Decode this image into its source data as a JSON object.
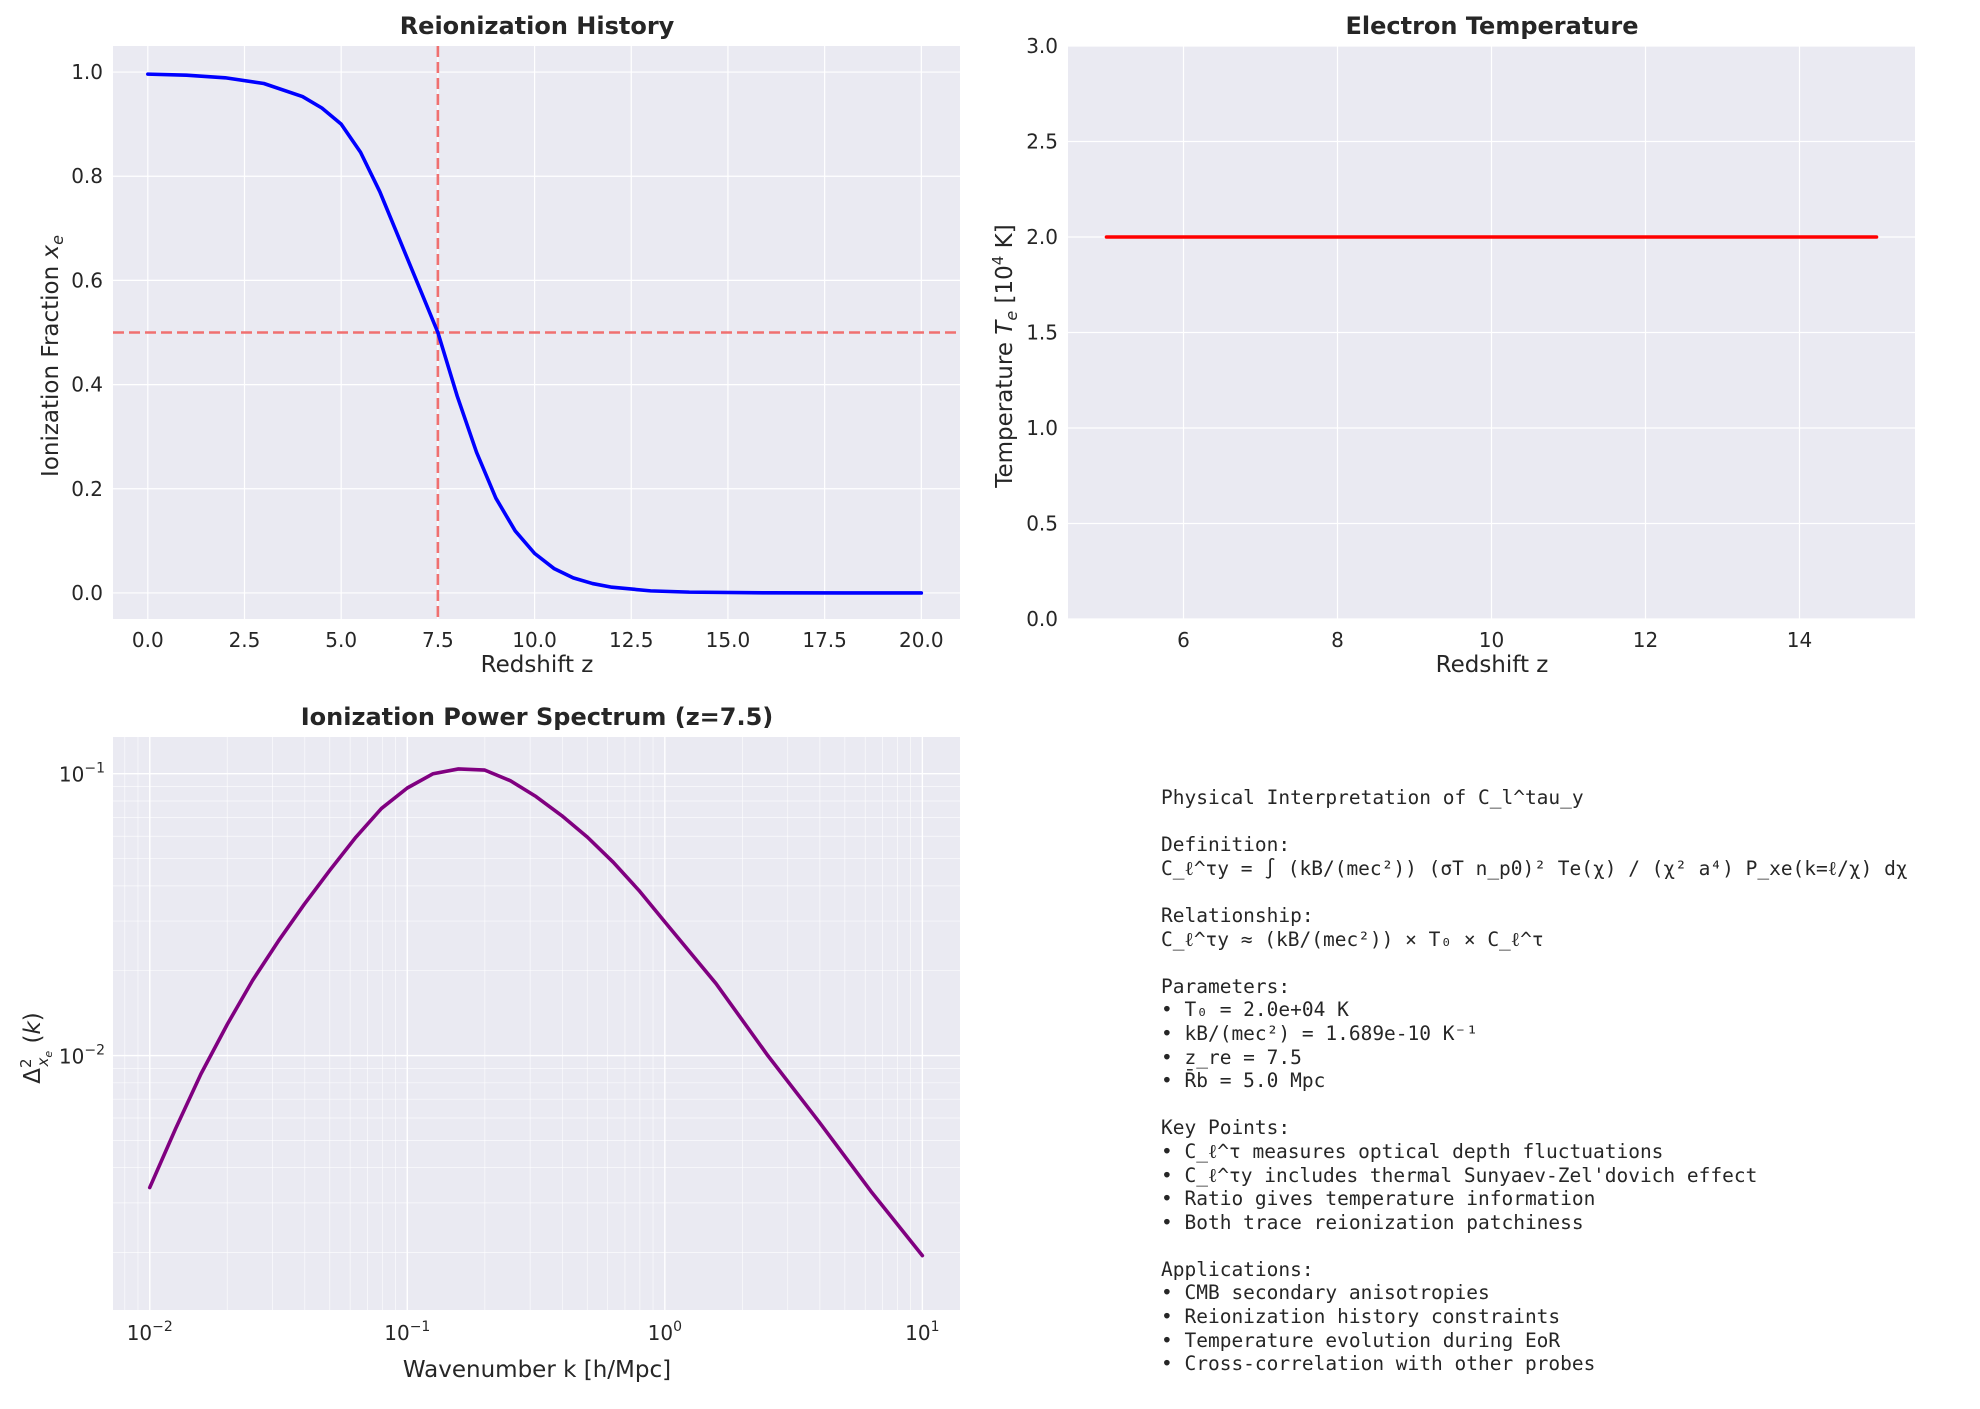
{
  "chart_data": [
    {
      "type": "line",
      "title": "Reionization History",
      "xlabel": "Redshift z",
      "ylabel": "Ionization Fraction x_e",
      "xlim": [
        -0.9,
        21.0
      ],
      "ylim": [
        -0.05,
        1.05
      ],
      "xticks": [
        "0.0",
        "2.5",
        "5.0",
        "7.5",
        "10.0",
        "12.5",
        "15.0",
        "17.5",
        "20.0"
      ],
      "yticks": [
        "0.0",
        "0.2",
        "0.4",
        "0.6",
        "0.8",
        "1.0"
      ],
      "grid": true,
      "series": [
        {
          "color": "#0000ff",
          "x": [
            0,
            1,
            2,
            3,
            4,
            4.5,
            5,
            5.5,
            6,
            6.5,
            7,
            7.5,
            8,
            8.5,
            9,
            9.5,
            10,
            10.5,
            11,
            11.5,
            12,
            13,
            14,
            16,
            18,
            20
          ],
          "y": [
            0.996,
            0.994,
            0.989,
            0.978,
            0.953,
            0.931,
            0.9,
            0.846,
            0.77,
            0.68,
            0.59,
            0.5,
            0.378,
            0.27,
            0.182,
            0.119,
            0.076,
            0.047,
            0.029,
            0.018,
            0.011,
            0.004,
            0.0016,
            0.0002,
            0.0,
            0.0
          ]
        }
      ],
      "reference_lines": [
        {
          "orientation": "vertical",
          "value": 7.5,
          "color": "#f07070",
          "style": "dashed"
        },
        {
          "orientation": "horizontal",
          "value": 0.5,
          "color": "#f07070",
          "style": "dashed"
        }
      ]
    },
    {
      "type": "line",
      "title": "Electron Temperature",
      "xlabel": "Redshift z",
      "ylabel": "Temperature T_e [10^4 K]",
      "xlim": [
        4.5,
        15.5
      ],
      "ylim": [
        0,
        3
      ],
      "xticks": [
        "6",
        "8",
        "10",
        "12",
        "14"
      ],
      "yticks": [
        "0.0",
        "0.5",
        "1.0",
        "1.5",
        "2.0",
        "2.5",
        "3.0"
      ],
      "grid": true,
      "series": [
        {
          "color": "#ff0000",
          "x": [
            5,
            15
          ],
          "y": [
            2.0,
            2.0
          ]
        }
      ]
    },
    {
      "type": "line",
      "title": "Ionization Power Spectrum (z=7.5)",
      "xlabel": "Wavenumber k [h/Mpc]",
      "ylabel": "Δ²_xe(k)",
      "xscale": "log",
      "yscale": "log",
      "xlim": [
        0.0072,
        14
      ],
      "ylim": [
        0.00125,
        0.135
      ],
      "xticks": [
        "10^-2",
        "10^-1",
        "10^0",
        "10^1"
      ],
      "yticks": [
        "10^-2",
        "10^-1"
      ],
      "grid": true,
      "series": [
        {
          "color": "#800080",
          "x": [
            0.01,
            0.0126,
            0.0158,
            0.02,
            0.0251,
            0.0316,
            0.0398,
            0.0501,
            0.0631,
            0.0794,
            0.1,
            0.126,
            0.158,
            0.2,
            0.251,
            0.316,
            0.398,
            0.501,
            0.631,
            0.794,
            1.0,
            1.58,
            2.51,
            3.98,
            6.31,
            10.0
          ],
          "y": [
            0.0034,
            0.0055,
            0.0086,
            0.0129,
            0.0185,
            0.0255,
            0.0344,
            0.0455,
            0.0595,
            0.0753,
            0.089,
            0.1,
            0.104,
            0.103,
            0.0945,
            0.083,
            0.071,
            0.0595,
            0.0485,
            0.0385,
            0.0298,
            0.018,
            0.01,
            0.0058,
            0.0033,
            0.00195
          ]
        }
      ]
    }
  ],
  "notes": {
    "title": "Physical Interpretation of C_l^tau_y",
    "definition_header": "Definition:",
    "definition": "C_ℓ^τy = ∫ (kB/(mec²)) (σT n_p0)² Te(χ) / (χ² a⁴) P_xe(k=ℓ/χ) dχ",
    "relationship_header": "Relationship:",
    "relationship": "C_ℓ^τy ≈ (kB/(mec²)) × T₀ × C_ℓ^τ",
    "parameters_header": "Parameters:",
    "parameters": [
      "• T₀ = 2.0e+04 K",
      "• kB/(mec²) = 1.689e-10 K⁻¹",
      "• z_re = 7.5",
      "• R̄b = 5.0 Mpc"
    ],
    "keypoints_header": "Key Points:",
    "keypoints": [
      "• C_ℓ^τ measures optical depth fluctuations",
      "• C_ℓ^τy includes thermal Sunyaev-Zel'dovich effect",
      "• Ratio gives temperature information",
      "• Both trace reionization patchiness"
    ],
    "applications_header": "Applications:",
    "applications": [
      "• CMB secondary anisotropies",
      "• Reionization history constraints",
      "• Temperature evolution during EoR",
      "• Cross-correlation with other probes"
    ]
  }
}
